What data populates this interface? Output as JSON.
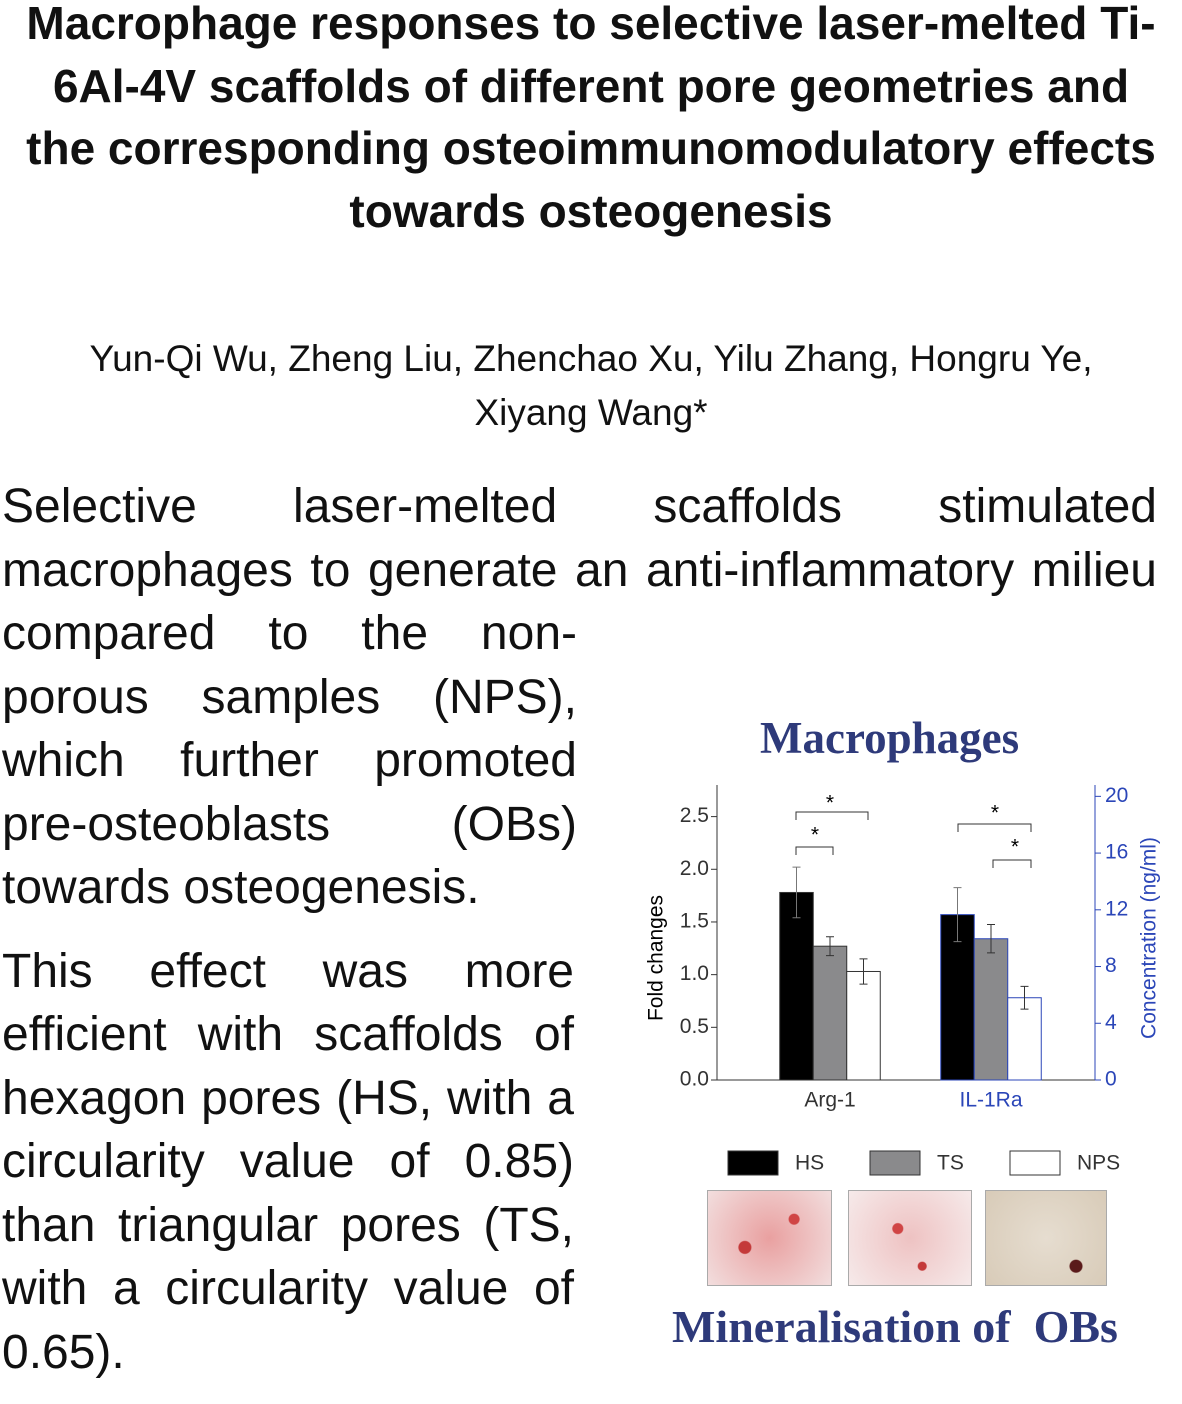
{
  "header": {
    "title": "Macrophage responses to selective laser-melted Ti-6Al-4V scaffolds of different pore geometries and the corresponding osteoimmunomodulatory effects towards osteogenesis",
    "authors": "Yun-Qi Wu, Zheng Liu, Zhenchao Xu, Yilu Zhang, Hongru Ye, Xiyang Wang*"
  },
  "text": {
    "paragraphs": [
      "Selective laser-melted scaffolds stimulated macrophages to generate an anti-inflammatory milieu compared to the non-porous samples (NPS), which further promoted pre-osteoblasts (OBs) towards osteogenesis.",
      "This effect was more efficient with scaffolds of hexagon pores (HS, with a circularity value of 0.85) than triangular pores (TS, with a circularity value of 0.65)."
    ]
  },
  "figure": {
    "top_label": "Macrophages",
    "bottom_label": "Mineralisation of  OBs"
  },
  "chart_data": [
    {
      "type": "bar",
      "ylabel": "Fold changes",
      "categories": [
        "Arg-1"
      ],
      "ylim": [
        0,
        2.8
      ],
      "yticks": [
        {
          "value": 0,
          "label": "0.0"
        },
        0.5,
        {
          "value": 1,
          "label": "1.0"
        },
        1.5,
        {
          "value": 2,
          "label": "2.0"
        },
        2.5
      ],
      "series": [
        {
          "name": "HS",
          "color": "#000000",
          "values": [
            1.78
          ],
          "errors": [
            0.24
          ]
        },
        {
          "name": "TS",
          "color": "#8a8a8c",
          "values": [
            1.27
          ],
          "errors": [
            0.09
          ]
        },
        {
          "name": "NPS",
          "color": "#ffffff",
          "values": [
            1.03
          ],
          "errors": [
            0.12
          ]
        }
      ],
      "annotations": [
        "*",
        "*"
      ]
    },
    {
      "type": "bar",
      "y2label": "Concentration (ng/ml)",
      "categories": [
        "IL-1Ra"
      ],
      "y2lim": [
        0,
        20.8
      ],
      "y2ticks": [
        0,
        4,
        8,
        12,
        16,
        20
      ],
      "series": [
        {
          "color": "#000000",
          "values": [
            11.66
          ],
          "errors": [
            1.9
          ],
          "axis": "y2"
        },
        {
          "color": "#8a8a8c",
          "values": [
            9.96
          ],
          "errors": [
            1.0
          ],
          "axis": "y2"
        },
        {
          "color": "#ffffff",
          "values": [
            5.8
          ],
          "errors": [
            0.8
          ],
          "axis": "y2"
        }
      ],
      "annotations": [
        "*",
        "*"
      ]
    }
  ]
}
